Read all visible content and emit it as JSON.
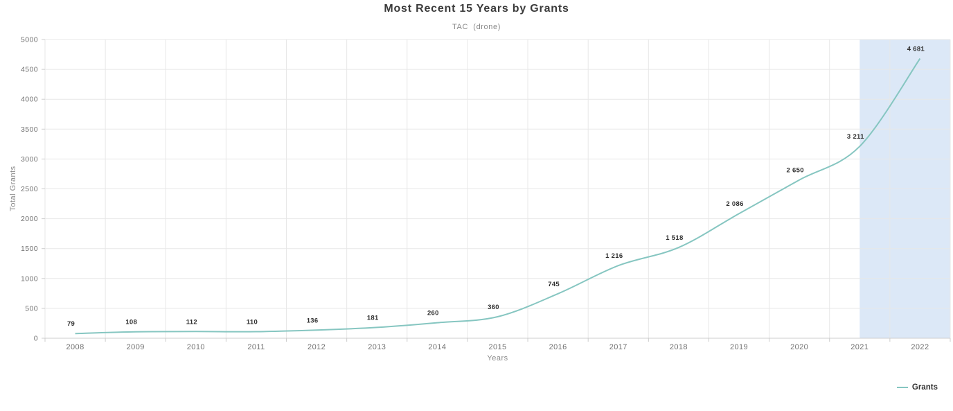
{
  "chart_data": {
    "type": "line",
    "title": "Most Recent 15 Years by Grants",
    "subtitle": "TAC  (drone)",
    "xlabel": "Years",
    "ylabel": "Total Grants",
    "categories": [
      "2008",
      "2009",
      "2010",
      "2011",
      "2012",
      "2013",
      "2014",
      "2015",
      "2016",
      "2017",
      "2018",
      "2019",
      "2020",
      "2021",
      "2022"
    ],
    "series": [
      {
        "name": "Grants",
        "values": [
          79,
          108,
          112,
          110,
          136,
          181,
          260,
          360,
          745,
          1216,
          1518,
          2086,
          2650,
          3211,
          4681
        ]
      }
    ],
    "data_labels": [
      "79",
      "108",
      "112",
      "110",
      "136",
      "181",
      "260",
      "360",
      "745",
      "1 216",
      "1 518",
      "2 086",
      "2 650",
      "3 211",
      "4 681"
    ],
    "ylim": [
      0,
      5000
    ],
    "ytick_step": 500,
    "grid": true,
    "legend_position": "bottom-right",
    "plot_band": {
      "from_category": "2021",
      "to": "plot-right-edge",
      "color": "#dce8f7"
    },
    "colors": {
      "line": "#86c6c1",
      "band": "#dce8f7",
      "grid": "#e7e7e7",
      "axis": "#cccccc",
      "axis_label": "#707070",
      "data_label": "#2f2f2f"
    }
  },
  "legend": {
    "label": "Grants"
  }
}
